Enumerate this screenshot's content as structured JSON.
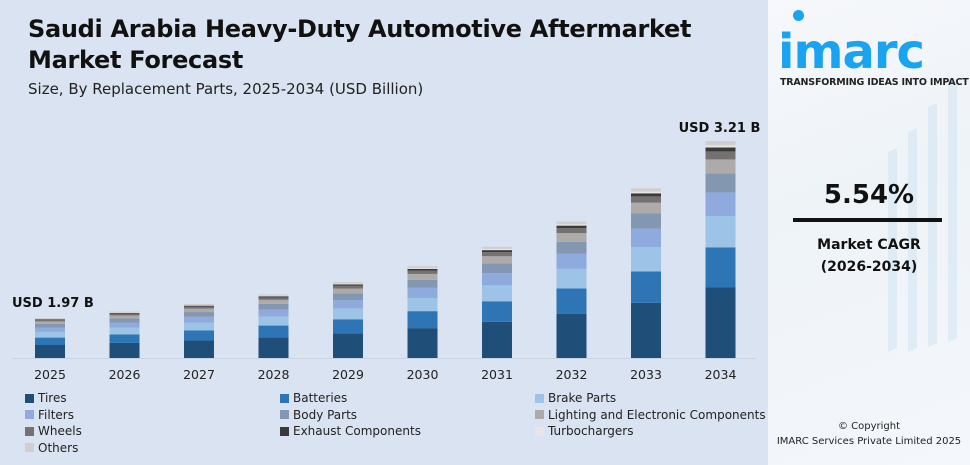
{
  "header": {
    "title_line1": "Saudi Arabia Heavy-Duty Automotive Aftermarket",
    "title_line2": "Market Forecast",
    "subtitle": "Size, By Replacement Parts, 2025-2034 (USD Billion)"
  },
  "brand": {
    "logo_text": "imarc",
    "tagline": "TRANSFORMING IDEAS INTO IMPACT",
    "logo_color": "#1aa3f0"
  },
  "cagr": {
    "value": "5.54%",
    "label": "Market CAGR",
    "period": "(2026-2034)"
  },
  "copyright": {
    "line1": "© Copyright",
    "line2": "IMARC Services Private Limited 2025"
  },
  "chart_data": {
    "type": "bar",
    "stacked": true,
    "title": "Saudi Arabia Heavy-Duty Automotive Aftermarket Market Forecast",
    "subtitle": "Size, By Replacement Parts, 2025-2034 (USD Billion)",
    "xlabel": "",
    "ylabel": "USD Billion",
    "grid": false,
    "legend_position": "bottom",
    "categories": [
      "2025",
      "2026",
      "2027",
      "2028",
      "2029",
      "2030",
      "2031",
      "2032",
      "2033",
      "2034"
    ],
    "totals": [
      1.97,
      2.08,
      2.19,
      2.31,
      2.44,
      2.58,
      2.72,
      2.87,
      3.03,
      3.21
    ],
    "annotations": [
      {
        "category": "2025",
        "text": "USD 1.97 B"
      },
      {
        "category": "2034",
        "text": "USD 3.21 B"
      }
    ],
    "series": [
      {
        "name": "Tires",
        "color": "#1f4e79",
        "share": 0.325
      },
      {
        "name": "Batteries",
        "color": "#2e75b6",
        "share": 0.185
      },
      {
        "name": "Brake Parts",
        "color": "#9dc3e6",
        "share": 0.143
      },
      {
        "name": "Filters",
        "color": "#8faadc",
        "share": 0.11
      },
      {
        "name": "Body Parts",
        "color": "#8497b0",
        "share": 0.088
      },
      {
        "name": "Lighting and Electronic Components",
        "color": "#aeaaaa",
        "share": 0.064
      },
      {
        "name": "Wheels",
        "color": "#767171",
        "share": 0.037
      },
      {
        "name": "Exhaust Components",
        "color": "#3a3a3a",
        "share": 0.018
      },
      {
        "name": "Turbochargers",
        "color": "#e7e6e6",
        "share": 0.01
      },
      {
        "name": "Others",
        "color": "#d0cece",
        "share": 0.02
      }
    ]
  }
}
